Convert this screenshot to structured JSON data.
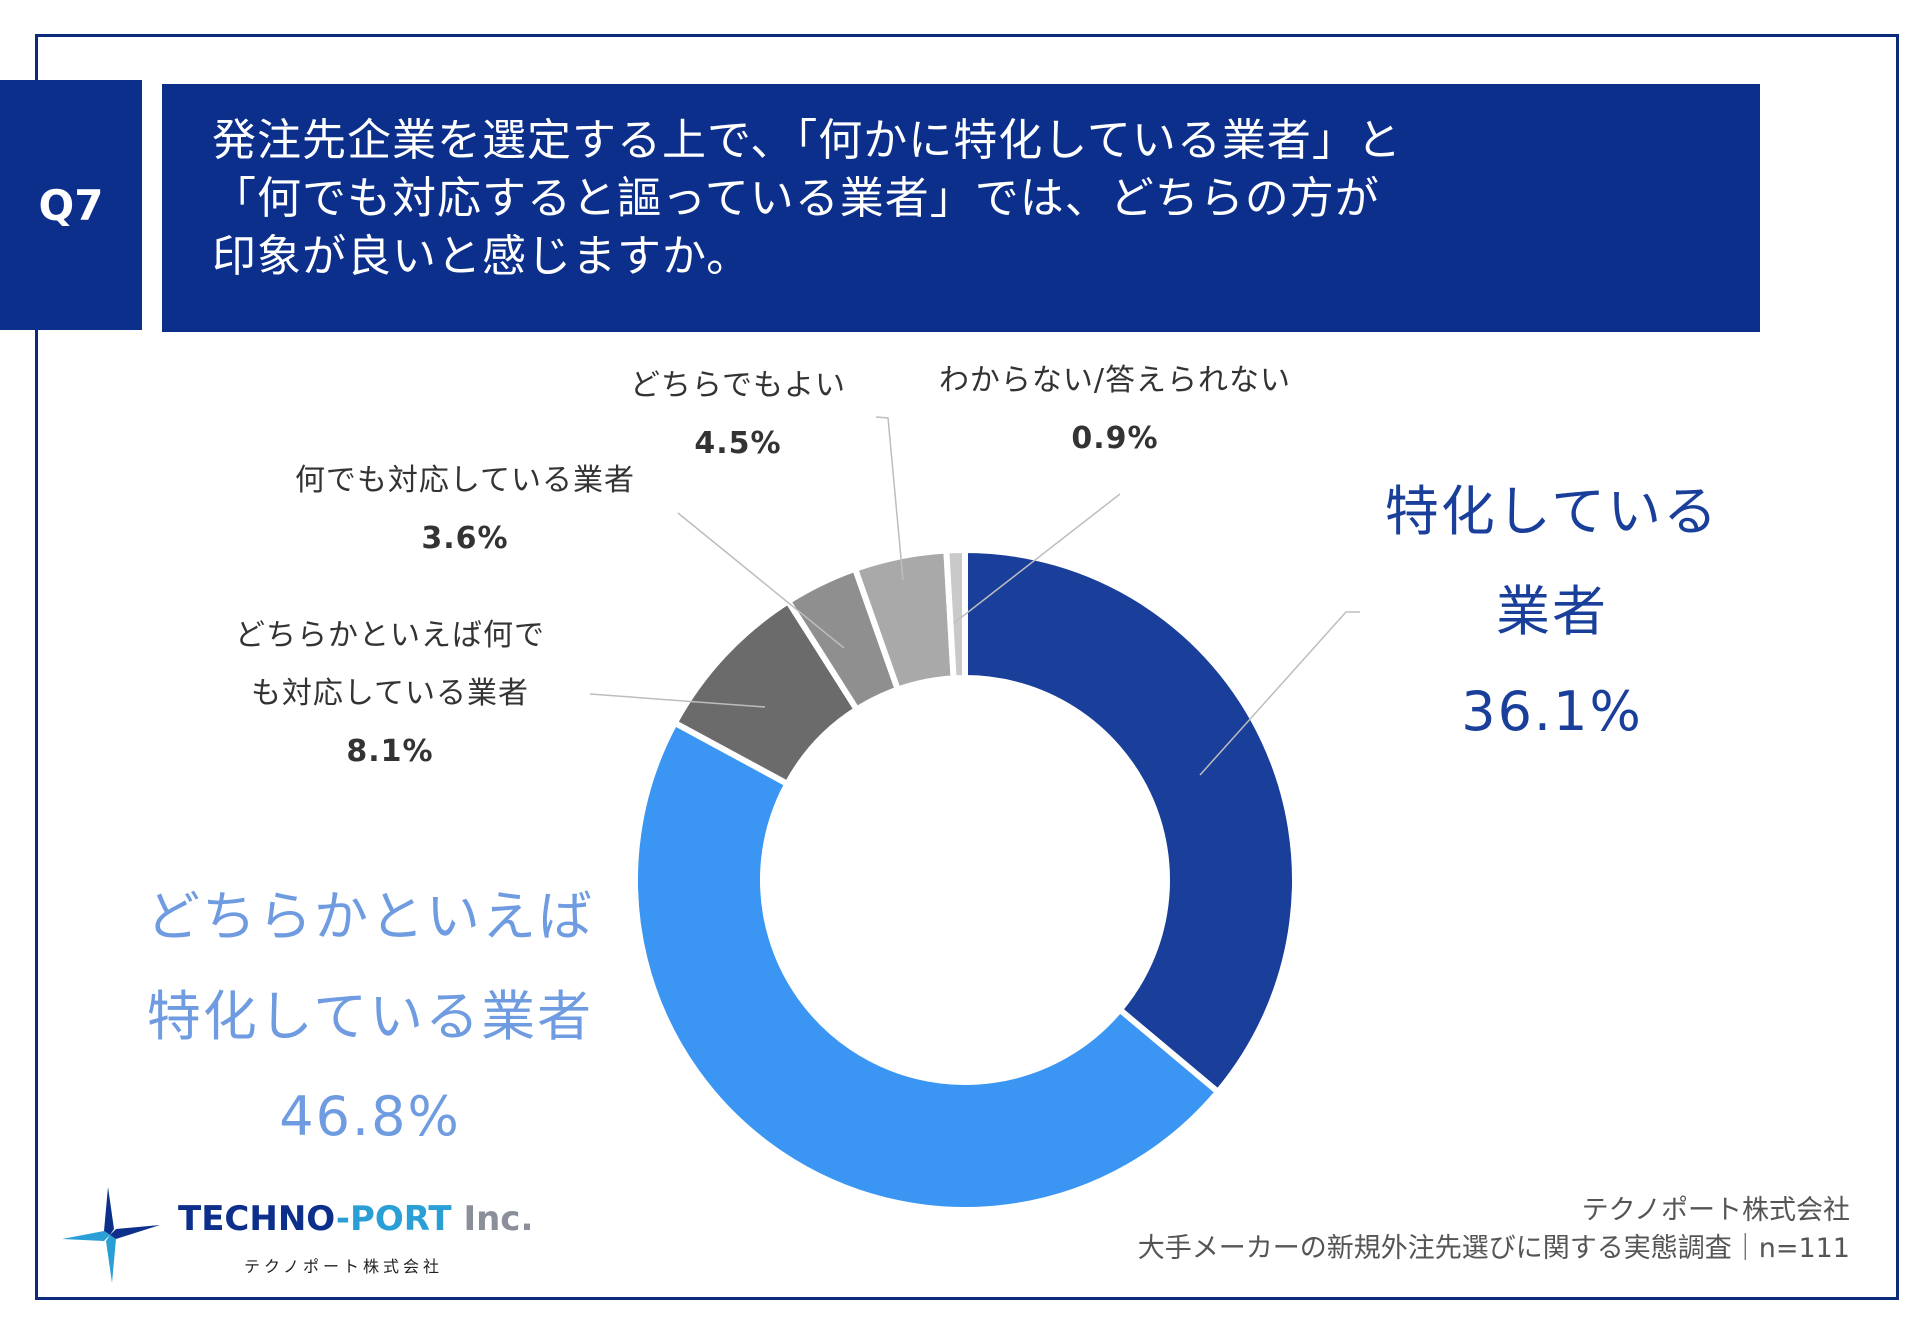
{
  "question": {
    "badge": "Q7",
    "lines": [
      "発注先企業を選定する上で、「何かに特化している業者」と",
      "「何でも対応すると謳っている業者」では、どちらの方が",
      "印象が良いと感じますか。"
    ]
  },
  "chart_data": {
    "type": "donut",
    "title": "",
    "start": "top",
    "direction": "clockwise",
    "slices": [
      {
        "label": "特化している業者",
        "label_lines": [
          "特化している",
          "業者"
        ],
        "value": 36.1,
        "value_text": "36.1%",
        "color": "#1a3f9a",
        "label_color": "#1a3f9a"
      },
      {
        "label": "どちらかといえば特化している業者",
        "label_lines": [
          "どちらかといえば",
          "特化している業者"
        ],
        "value": 46.8,
        "value_text": "46.8%",
        "color": "#3a96f2",
        "label_color": "#6f9be0"
      },
      {
        "label": "どちらかといえば何でも対応している業者",
        "label_lines": [
          "どちらかといえば何で",
          "も対応している業者"
        ],
        "value": 8.1,
        "value_text": "8.1%",
        "color": "#6b6b6b",
        "label_color": "#333333"
      },
      {
        "label": "何でも対応している業者",
        "label_lines": [
          "何でも対応している業者"
        ],
        "value": 3.6,
        "value_text": "3.6%",
        "color": "#8f8f8f",
        "label_color": "#333333"
      },
      {
        "label": "どちらでもよい",
        "label_lines": [
          "どちらでもよい"
        ],
        "value": 4.5,
        "value_text": "4.5%",
        "color": "#a9a9a9",
        "label_color": "#333333"
      },
      {
        "label": "わからない/答えられない",
        "label_lines": [
          "わからない/答えられない"
        ],
        "value": 0.9,
        "value_text": "0.9%",
        "color": "#c9c9c9",
        "label_color": "#333333"
      }
    ]
  },
  "footer": {
    "company": "テクノポート株式会社",
    "survey": "大手メーカーの新規外注先選びに関する実態調査｜n=111"
  },
  "logo": {
    "name_part1": "TECHNO",
    "name_part2": "-PORT",
    "name_part3": " Inc.",
    "sub": "テクノポート株式会社"
  }
}
